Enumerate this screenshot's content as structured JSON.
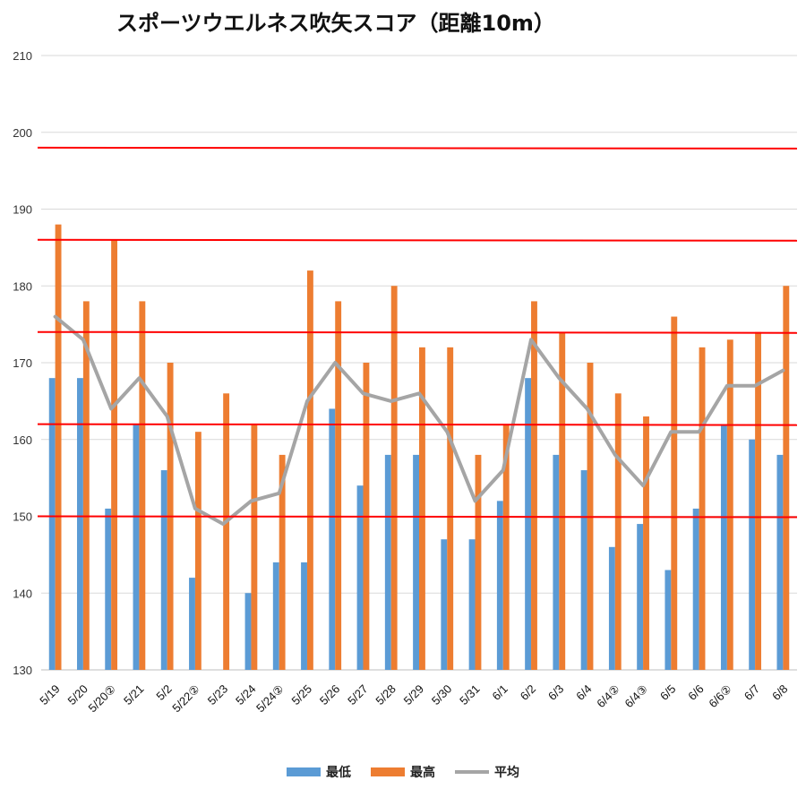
{
  "chart_data": {
    "type": "bar",
    "title": "スポーツウエルネス吹矢スコア（距離10m）",
    "categories": [
      "5/19",
      "5/20",
      "5/20②",
      "5/21",
      "5/2",
      "5/22②",
      "5/23",
      "5/24",
      "5/24②",
      "5/25",
      "5/26",
      "5/27",
      "5/28",
      "5/29",
      "5/30",
      "5/31",
      "6/1",
      "6/2",
      "6/3",
      "6/4",
      "6/4②",
      "6/4③",
      "6/5",
      "6/6",
      "6/6②",
      "6/7",
      "6/8"
    ],
    "series": [
      {
        "name": "最低",
        "type": "bar",
        "color": "#5B9BD5",
        "values": [
          168,
          168,
          151,
          162,
          156,
          142,
          null,
          140,
          144,
          144,
          164,
          154,
          158,
          158,
          147,
          147,
          152,
          168,
          158,
          156,
          146,
          149,
          143,
          151,
          162,
          160,
          158
        ]
      },
      {
        "name": "最高",
        "type": "bar",
        "color": "#ED7D31",
        "values": [
          188,
          178,
          186,
          178,
          170,
          161,
          166,
          162,
          158,
          182,
          178,
          170,
          180,
          172,
          172,
          158,
          162,
          178,
          174,
          170,
          166,
          163,
          176,
          172,
          173,
          174,
          180
        ]
      },
      {
        "name": "平均",
        "type": "line",
        "color": "#A5A5A5",
        "values": [
          176,
          173,
          164,
          168,
          163,
          151,
          149,
          152,
          153,
          165,
          170,
          166,
          165,
          166,
          161,
          152,
          156,
          173,
          168,
          164,
          158,
          154,
          161,
          161,
          167,
          167,
          169
        ]
      }
    ],
    "ylim": [
      130,
      210
    ],
    "yticks": [
      130,
      140,
      150,
      160,
      170,
      180,
      190,
      200,
      210
    ],
    "reference_lines": [
      198,
      186,
      174,
      162,
      150
    ],
    "reference_line_color": "#FF0000",
    "grid": true,
    "legend_position": "bottom",
    "xlabel": "",
    "ylabel": ""
  }
}
